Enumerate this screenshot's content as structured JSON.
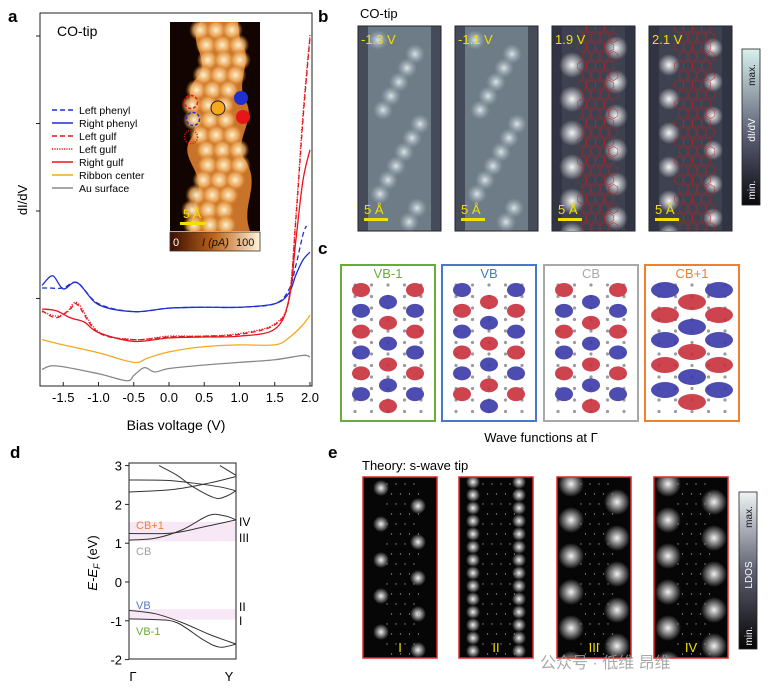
{
  "panel_labels": {
    "a": "a",
    "b": "b",
    "c": "c",
    "d": "d",
    "e": "e"
  },
  "watermark": "公众号 · 低维 昂维",
  "chart_data": [
    {
      "panel": "a",
      "type": "line",
      "annotation": "CO-tip",
      "xlabel": "Bias voltage (V)",
      "ylabel": "dI/dV",
      "xlim": [
        -1.8,
        2.0
      ],
      "ylim": [
        0,
        4.3
      ],
      "x_ticks": [
        "-1.5",
        "-1.0",
        "-0.5",
        "0.0",
        "0.5",
        "1.0",
        "1.5",
        "2.0"
      ],
      "y_tick_labels_shown": false,
      "legend_placement": "left-middle",
      "series": [
        {
          "name": "Left phenyl",
          "color": "#1f2fd0",
          "style": "dashed",
          "x": [
            -1.8,
            -1.7,
            -1.5,
            -1.3,
            -1.0,
            -0.5,
            0,
            0.5,
            1.0,
            1.5,
            1.7,
            1.8,
            1.9,
            1.95
          ],
          "y": [
            1.12,
            1.12,
            1.12,
            1.18,
            0.94,
            0.85,
            0.89,
            0.9,
            0.9,
            0.94,
            1.1,
            1.38,
            1.73,
            1.83
          ]
        },
        {
          "name": "Right phenyl",
          "color": "#1f2fd0",
          "style": "solid",
          "x": [
            -1.8,
            -1.65,
            -1.5,
            -1.3,
            -1.0,
            -0.5,
            0,
            0.5,
            1.0,
            1.5,
            1.7,
            1.8,
            1.9,
            2.0
          ],
          "y": [
            1.15,
            1.26,
            1.11,
            1.18,
            0.93,
            0.85,
            0.89,
            0.9,
            0.9,
            0.94,
            1.06,
            1.27,
            1.44,
            1.53
          ]
        },
        {
          "name": "Left gulf",
          "color": "#e8141c",
          "style": "dashed",
          "x": [
            -1.8,
            -1.6,
            -1.4,
            -1.3,
            -1.0,
            -0.5,
            0,
            0.5,
            1.0,
            1.5,
            1.7,
            1.8,
            1.9,
            2.0
          ],
          "y": [
            0.86,
            0.78,
            0.88,
            0.93,
            0.61,
            0.53,
            0.56,
            0.57,
            0.59,
            0.7,
            0.98,
            1.9,
            3.04,
            3.98
          ]
        },
        {
          "name": "Left gulf",
          "color": "#e8141c",
          "style": "dotted",
          "x": [
            -1.8,
            -1.6,
            -1.45,
            -1.3,
            -1.0,
            -0.5,
            0,
            0.5,
            1.0,
            1.5,
            1.7,
            1.8,
            1.9,
            2.0
          ],
          "y": [
            0.85,
            0.8,
            0.84,
            0.95,
            0.62,
            0.53,
            0.57,
            0.57,
            0.6,
            0.71,
            1.0,
            1.95,
            3.1,
            4.02
          ]
        },
        {
          "name": "Right gulf",
          "color": "#e8141c",
          "style": "solid",
          "x": [
            -1.8,
            -1.6,
            -1.4,
            -1.2,
            -1.0,
            -0.5,
            0,
            0.5,
            1.0,
            1.5,
            1.7,
            1.8,
            1.9,
            2.0
          ],
          "y": [
            0.88,
            0.86,
            0.78,
            0.73,
            0.61,
            0.51,
            0.55,
            0.56,
            0.57,
            0.65,
            0.98,
            1.67,
            2.35,
            2.7
          ]
        },
        {
          "name": "Ribbon center",
          "color": "#f5a81c",
          "style": "solid",
          "x": [
            -1.8,
            -1.5,
            -1.0,
            -0.5,
            -0.3,
            0,
            0.5,
            1.0,
            1.5,
            1.7,
            1.9,
            2.0
          ],
          "y": [
            0.53,
            0.47,
            0.38,
            0.27,
            0.32,
            0.39,
            0.45,
            0.47,
            0.47,
            0.55,
            0.7,
            0.81
          ]
        },
        {
          "name": "Au surface",
          "color": "#888888",
          "style": "solid",
          "x": [
            -1.8,
            -1.6,
            -1.0,
            -0.6,
            -0.5,
            -0.35,
            -0.2,
            0,
            0.5,
            1.0,
            1.5,
            1.9,
            2.0
          ],
          "y": [
            0.19,
            0.23,
            0.14,
            0.06,
            0.12,
            0.21,
            0.16,
            0.2,
            0.24,
            0.27,
            0.3,
            0.35,
            0.33
          ]
        }
      ],
      "inset": {
        "scale_bar": "5 Å",
        "colorbar_min": "0",
        "colorbar_label": "I (pA)",
        "colorbar_max": "100"
      }
    },
    {
      "panel": "d",
      "type": "line",
      "ylabel": "E-E_F (eV)",
      "ylabel_main": "E-E",
      "ylabel_sub": "F",
      "ylabel_unit": " (eV)",
      "x_ticks": [
        "Γ",
        "Y"
      ],
      "y_ticks": [
        "3",
        "2",
        "1",
        "0",
        "-1",
        "-2"
      ],
      "ylim": [
        -2,
        3
      ],
      "band_labels": [
        {
          "text": "CB+1",
          "color": "#f08030"
        },
        {
          "text": "CB",
          "color": "#a0a0a0"
        },
        {
          "text": "VB",
          "color": "#5a78c8"
        },
        {
          "text": "VB-1",
          "color": "#6aaa3a"
        }
      ],
      "level_labels": [
        "IV",
        "III",
        "II",
        "I"
      ],
      "shaded_ranges_eV": [
        [
          1.05,
          1.55
        ],
        [
          -0.97,
          -0.7
        ]
      ],
      "bands": [
        {
          "k": [
            0,
            0.25,
            0.5,
            0.75,
            1
          ],
          "E": [
            -0.73,
            -0.82,
            -1.05,
            -1.35,
            -1.6
          ]
        },
        {
          "k": [
            0,
            0.25,
            0.45,
            0.7,
            0.85,
            1
          ],
          "E": [
            -0.95,
            -0.97,
            -1.05,
            -1.5,
            -1.68,
            -1.6
          ]
        },
        {
          "k": [
            0,
            0.25,
            0.5,
            0.75,
            0.9,
            1
          ],
          "E": [
            1.08,
            1.13,
            1.35,
            1.72,
            1.7,
            1.6
          ]
        },
        {
          "k": [
            0,
            0.4,
            0.7,
            1
          ],
          "E": [
            1.25,
            1.26,
            1.42,
            1.6
          ]
        },
        {
          "k": [
            0,
            0.4,
            0.75,
            1
          ],
          "E": [
            2.32,
            2.38,
            2.55,
            2.72
          ]
        },
        {
          "k": [
            0,
            0.35,
            0.6,
            0.85,
            1
          ],
          "E": [
            2.63,
            2.62,
            2.55,
            2.45,
            2.35
          ]
        },
        {
          "k": [
            0.28,
            0.45,
            0.6,
            0.8,
            0.9,
            1
          ],
          "E": [
            3.0,
            2.75,
            2.45,
            2.17,
            2.2,
            2.35
          ]
        },
        {
          "k": [
            0.85,
            1
          ],
          "E": [
            3.0,
            2.75
          ]
        }
      ]
    }
  ],
  "panel_b": {
    "title": "CO-tip",
    "images": [
      {
        "bias": "-1.3 V"
      },
      {
        "bias": "-1.1 V"
      },
      {
        "bias": "1.9 V"
      },
      {
        "bias": "2.1 V"
      }
    ],
    "scale_bar": "5 Å",
    "colorbar": {
      "max": "max.",
      "label": "dI/dV",
      "min": "min."
    }
  },
  "panel_c": {
    "caption": "Wave functions at Γ",
    "orbitals": [
      {
        "label": "VB-1",
        "color": "#6aaa3a"
      },
      {
        "label": "VB",
        "color": "#4a78c8"
      },
      {
        "label": "CB",
        "color": "#a8a8a8"
      },
      {
        "label": "CB+1",
        "color": "#f08030"
      }
    ]
  },
  "panel_e": {
    "title": "Theory: s-wave tip",
    "images": [
      {
        "label": "I"
      },
      {
        "label": "II"
      },
      {
        "label": "III"
      },
      {
        "label": "IV"
      }
    ],
    "colorbar": {
      "max": "max.",
      "label": "LDOS",
      "min": "min."
    }
  }
}
